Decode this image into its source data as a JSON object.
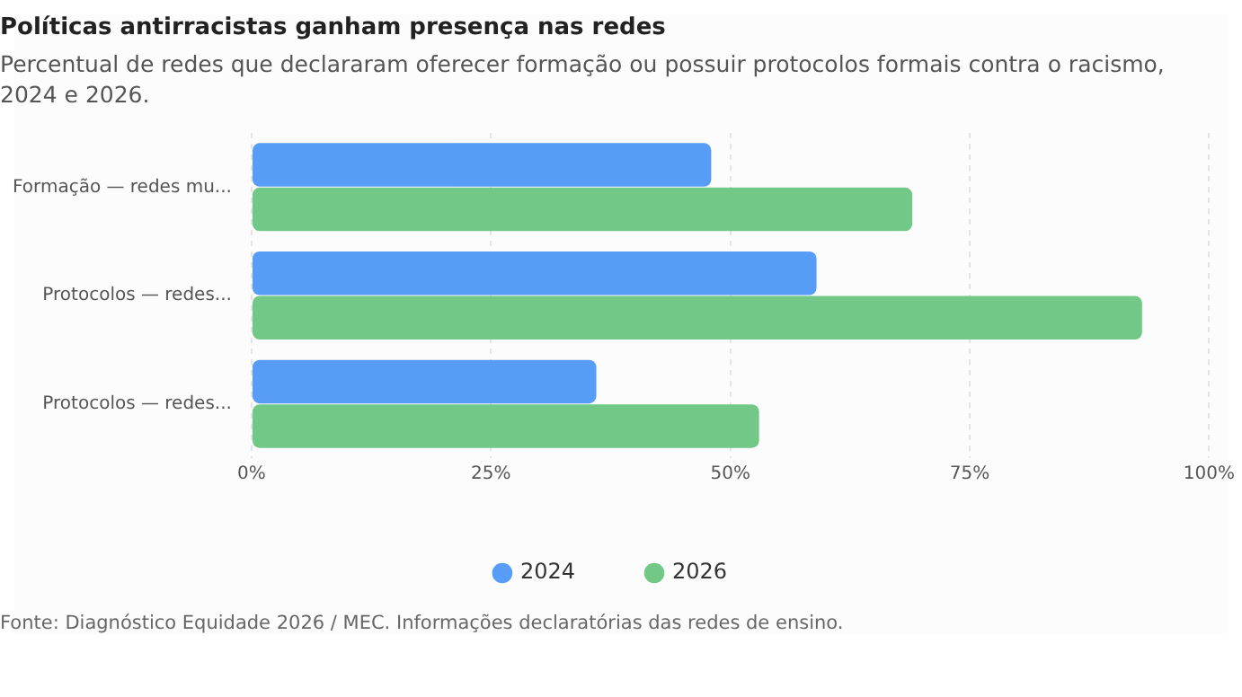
{
  "chart_data": {
    "type": "bar",
    "orientation": "horizontal",
    "title": "Políticas antirracistas ganham presença nas redes",
    "subtitle": "Percentual de redes que declararam oferecer formação ou possuir protocolos formais contra o racismo, 2024 e 2026.",
    "categories": [
      "Formação — redes mu...",
      "Protocolos — redes...",
      "Protocolos — redes..."
    ],
    "series": [
      {
        "name": "2024",
        "color": "#579df7",
        "values": [
          48,
          59,
          36
        ]
      },
      {
        "name": "2026",
        "color": "#72c987",
        "values": [
          69,
          93,
          53
        ]
      }
    ],
    "xlim": [
      0,
      100
    ],
    "xticks": [
      {
        "value": 0,
        "label": "0%"
      },
      {
        "value": 25,
        "label": "25%"
      },
      {
        "value": 50,
        "label": "50%"
      },
      {
        "value": 75,
        "label": "75%"
      },
      {
        "value": 100,
        "label": "100%"
      }
    ],
    "grid": "x",
    "legend": "bottom",
    "annotations": [
      "Fonte: Diagnóstico Equidade 2026 / MEC. Informações declaratórias das redes de ensino."
    ]
  }
}
